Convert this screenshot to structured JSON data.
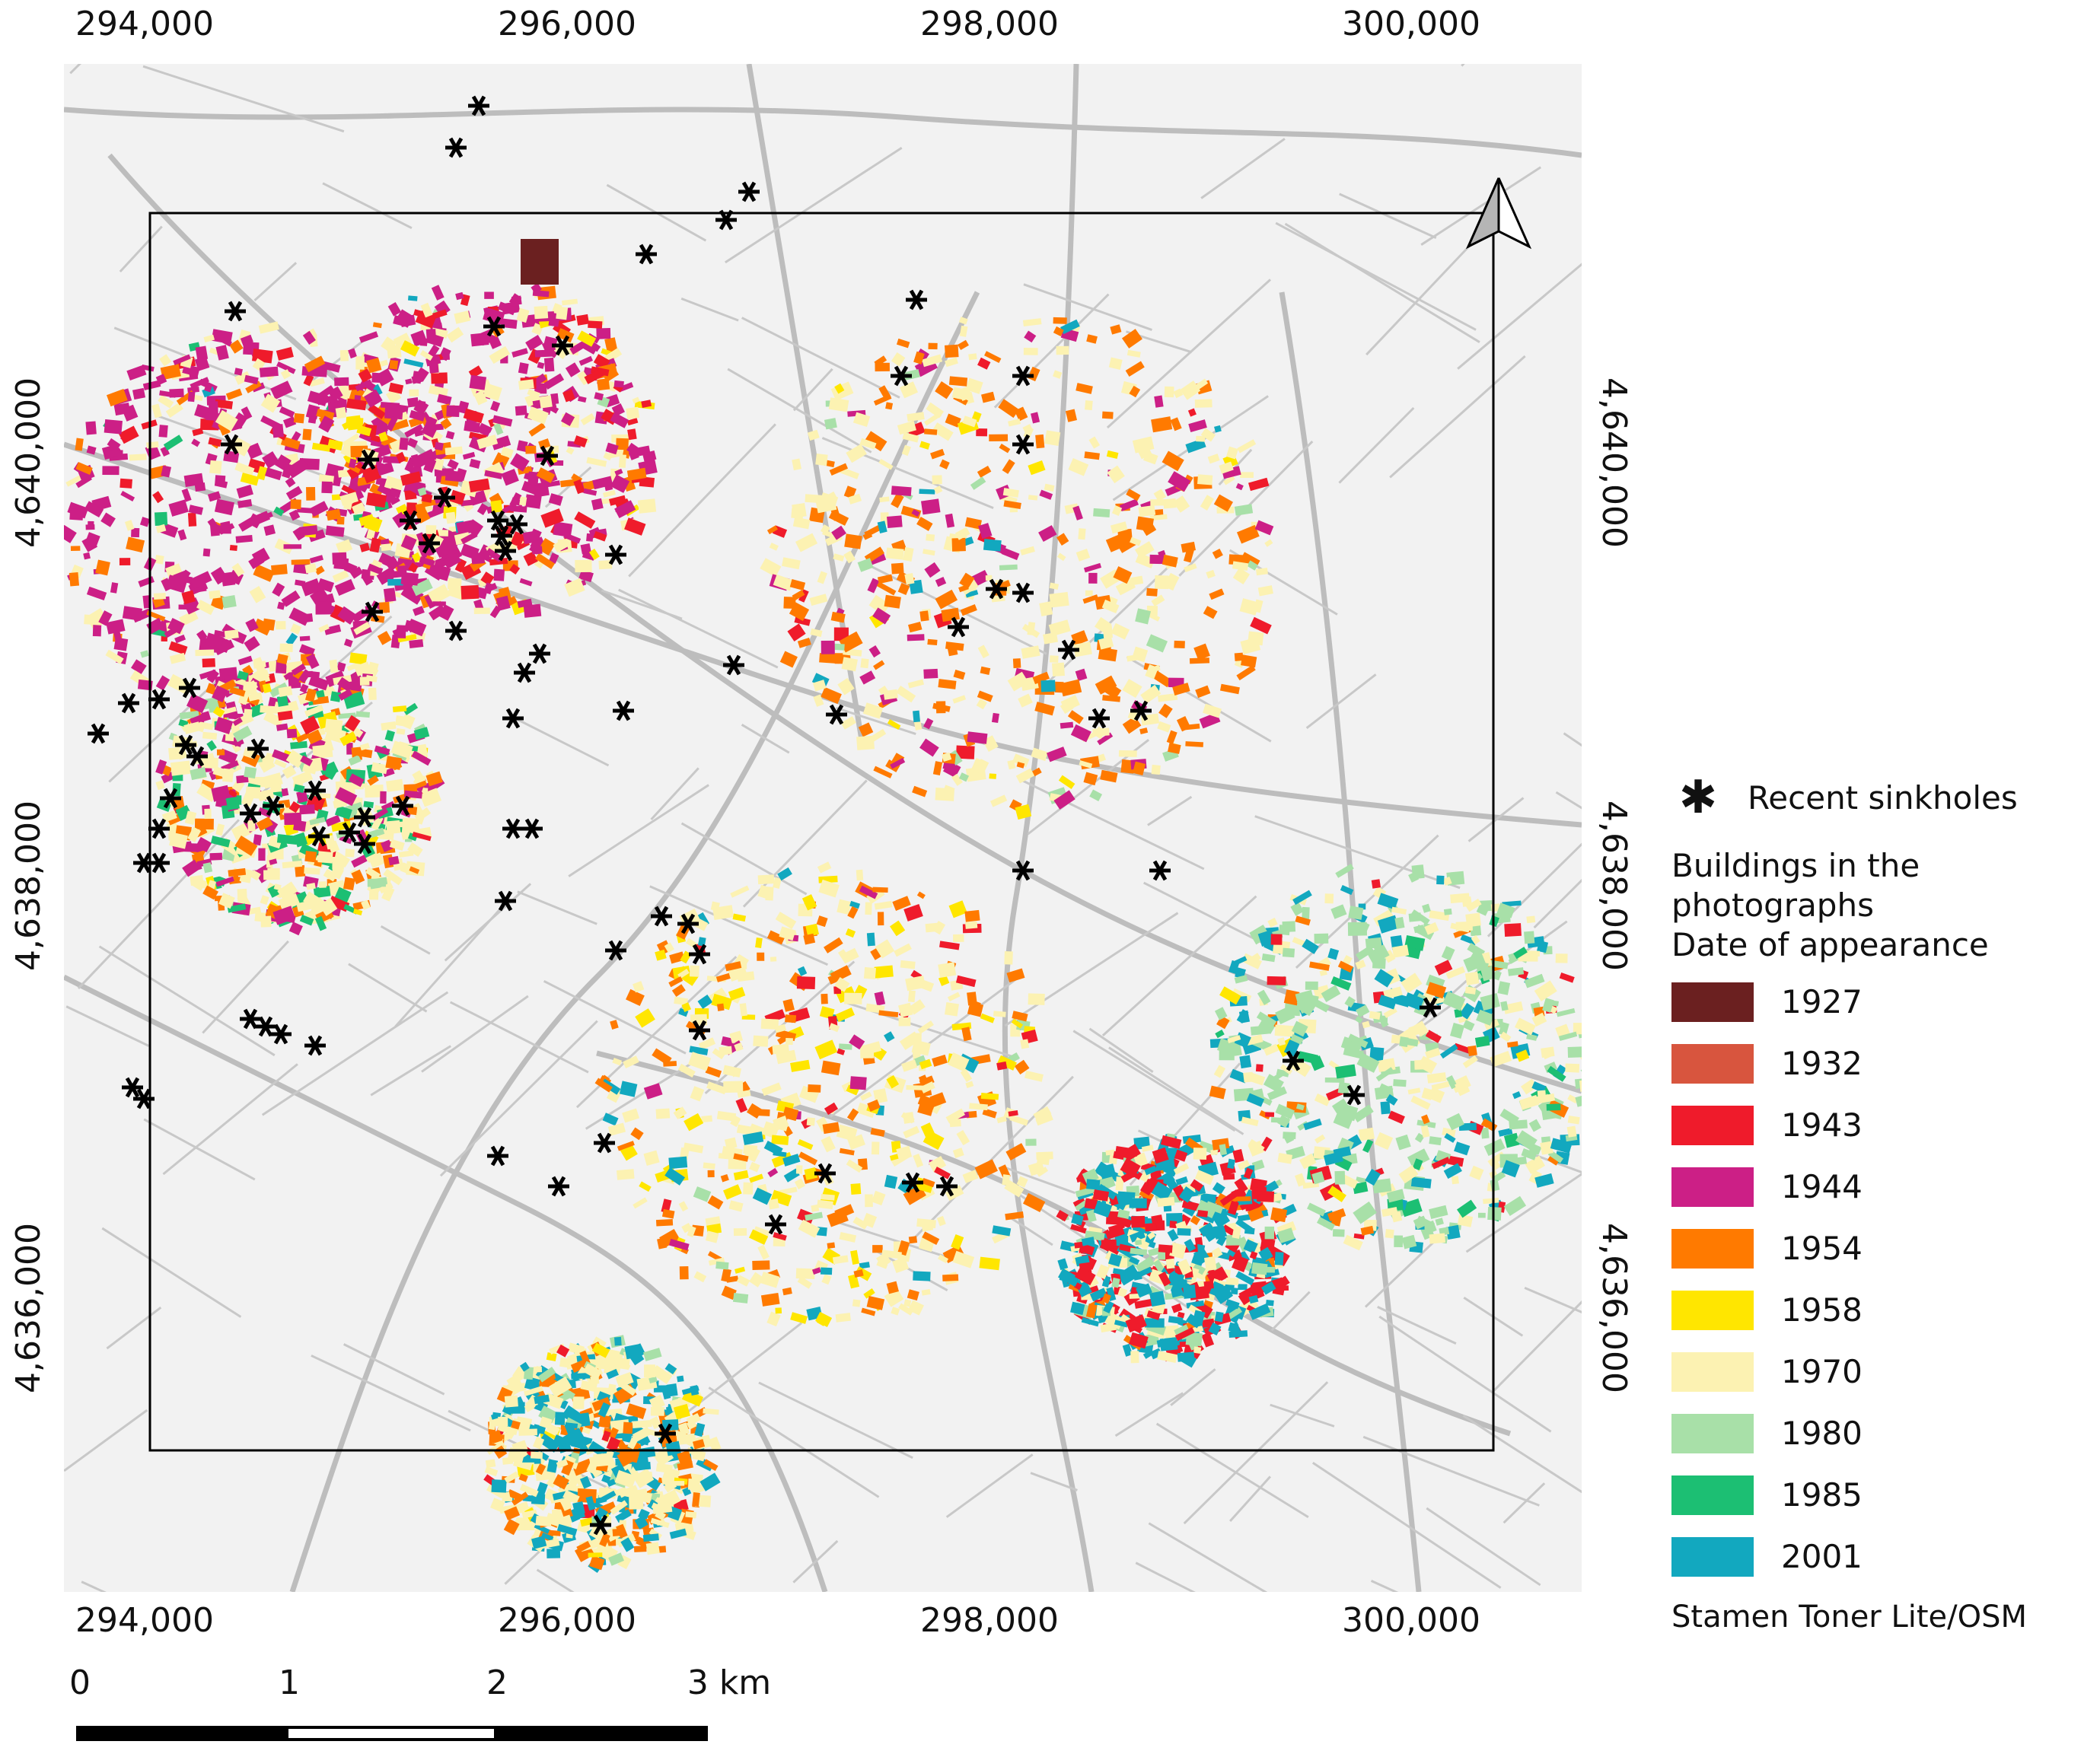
{
  "map": {
    "x_ticks": [
      "294,000",
      "296,000",
      "298,000",
      "300,000"
    ],
    "y_ticks": [
      "4,640,000",
      "4,638,000",
      "4,636,000"
    ],
    "basemap_color": "#f2f2f2",
    "road_color": "#bdbdbd",
    "frame_color": "#000000",
    "north_arrow_icon": "north-arrow-icon",
    "sinkhole_icon": "asterisk-icon"
  },
  "legend": {
    "sinkhole_label": "Recent sinkholes",
    "buildings_title": "Buildings in the photographs",
    "date_title": "Date of appearance",
    "items": [
      {
        "label": "1927",
        "color": "#6b2020"
      },
      {
        "label": "1932",
        "color": "#d8553e"
      },
      {
        "label": "1943",
        "color": "#ef1b2b"
      },
      {
        "label": "1944",
        "color": "#cc1f86"
      },
      {
        "label": "1954",
        "color": "#ff7a00"
      },
      {
        "label": "1958",
        "color": "#ffe600"
      },
      {
        "label": "1970",
        "color": "#fcf2b2"
      },
      {
        "label": "1980",
        "color": "#a8e0a8"
      },
      {
        "label": "1985",
        "color": "#1cbf73"
      },
      {
        "label": "2001",
        "color": "#12a8bf"
      }
    ],
    "credit": "Stamen Toner Lite/OSM"
  },
  "scalebar": {
    "labels": [
      "0",
      "1",
      "2",
      "3 km"
    ]
  }
}
